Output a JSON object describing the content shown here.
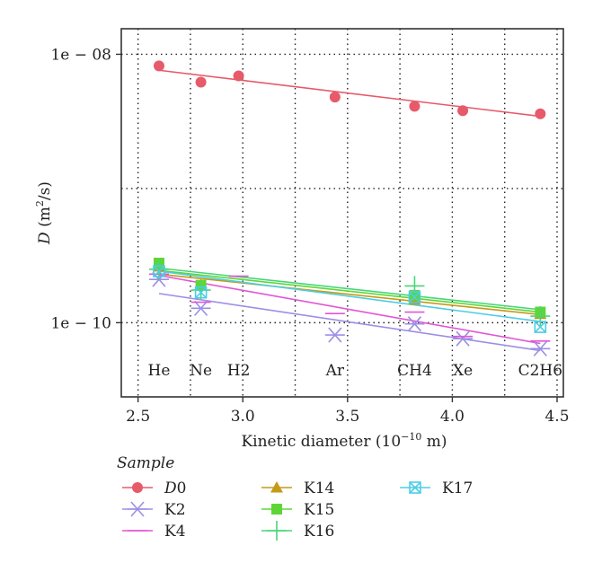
{
  "chart_data": {
    "type": "scatter",
    "title": "",
    "xlabel": "Kinetic diameter (10",
    "xlabel_sup": "−10",
    "xlabel_suffix": " m)",
    "ylabel_var": "D",
    "ylabel_unit": "(m",
    "ylabel_sup": "2",
    "ylabel_suffix": "/s)",
    "xlim": [
      2.42,
      4.53
    ],
    "ylim": [
      2.8e-11,
      1.55e-08
    ],
    "y_scale": "log",
    "grid": "dotted",
    "xticks": [
      2.5,
      3.0,
      3.5,
      4.0,
      4.5
    ],
    "xtick_labels": [
      "2.5",
      "3.0",
      "3.5",
      "4.0",
      "4.5"
    ],
    "yticks": [
      1e-10,
      1e-08
    ],
    "ytick_labels": [
      "1e − 10",
      "1e − 08"
    ],
    "gas_x": [
      2.6,
      2.8,
      2.98,
      3.44,
      3.82,
      4.05,
      4.42
    ],
    "gas_labels": [
      "He",
      "Ne",
      "H2",
      "Ar",
      "CH4",
      "Xe",
      "C2H6"
    ],
    "legend_title": "Sample",
    "legend_position": "bottom",
    "series": [
      {
        "name": "D0",
        "marker": "circle",
        "color": "#e75a6a",
        "points": [
          [
            2.6,
            8.2e-09
          ],
          [
            2.8,
            6.2e-09
          ],
          [
            2.98,
            6.9e-09
          ],
          [
            3.44,
            4.8e-09
          ],
          [
            3.82,
            4.1e-09
          ],
          [
            4.05,
            3.8e-09
          ],
          [
            4.42,
            3.6e-09
          ]
        ],
        "fit": [
          [
            2.6,
            7.6e-09
          ],
          [
            4.42,
            3.45e-09
          ]
        ]
      },
      {
        "name": "K2",
        "marker": "asterisk",
        "color": "#9b8fe6",
        "points": [
          [
            2.6,
            2.1e-10
          ],
          [
            2.8,
            1.28e-10
          ],
          [
            3.44,
            8.1e-11
          ],
          [
            3.82,
            9.8e-11
          ],
          [
            4.05,
            7.6e-11
          ],
          [
            4.42,
            6.4e-11
          ]
        ],
        "fit": [
          [
            2.6,
            1.65e-10
          ],
          [
            4.42,
            6.2e-11
          ]
        ]
      },
      {
        "name": "K4",
        "marker": "bar",
        "color": "#e254d6",
        "points": [
          [
            2.6,
            2.3e-10
          ],
          [
            2.8,
            1.42e-10
          ],
          [
            2.98,
            2.22e-10
          ],
          [
            3.44,
            1.17e-10
          ],
          [
            3.82,
            1.2e-10
          ],
          [
            4.05,
            7.9e-11
          ],
          [
            4.42,
            7.3e-11
          ]
        ],
        "fit": [
          [
            2.6,
            2.25e-10
          ],
          [
            4.42,
            7e-11
          ]
        ]
      },
      {
        "name": "K14",
        "marker": "triangle",
        "color": "#c49a17",
        "points": [
          [
            2.6,
            2.62e-10
          ],
          [
            2.8,
            1.92e-10
          ],
          [
            3.82,
            1.48e-10
          ],
          [
            4.42,
            1.16e-10
          ]
        ],
        "fit": [
          [
            2.6,
            2.3e-10
          ],
          [
            4.42,
            1.15e-10
          ]
        ]
      },
      {
        "name": "K15",
        "marker": "square",
        "color": "#5ed636",
        "points": [
          [
            2.6,
            2.78e-10
          ],
          [
            2.8,
            1.9e-10
          ],
          [
            3.82,
            1.6e-10
          ],
          [
            4.42,
            1.2e-10
          ]
        ],
        "fit": [
          [
            2.6,
            2.45e-10
          ],
          [
            4.42,
            1.2e-10
          ]
        ]
      },
      {
        "name": "K16",
        "marker": "plus",
        "color": "#46d676",
        "points": [
          [
            2.6,
            2.5e-10
          ],
          [
            2.8,
            1.75e-10
          ],
          [
            3.82,
            1.88e-10
          ],
          [
            4.42,
            1.12e-10
          ]
        ],
        "fit": [
          [
            2.6,
            2.55e-10
          ],
          [
            4.42,
            1.25e-10
          ]
        ]
      },
      {
        "name": "K17",
        "marker": "boxx",
        "color": "#4ccde6",
        "points": [
          [
            2.6,
            2.42e-10
          ],
          [
            2.8,
            1.68e-10
          ],
          [
            3.82,
            1.55e-10
          ],
          [
            4.42,
            9.3e-11
          ]
        ],
        "fit": [
          [
            2.6,
            2.42e-10
          ],
          [
            4.42,
            1.02e-10
          ]
        ]
      }
    ]
  }
}
